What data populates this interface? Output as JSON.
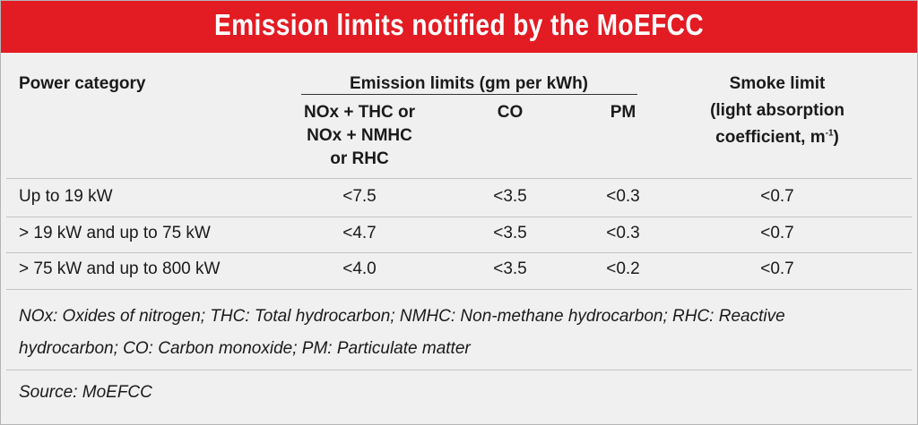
{
  "title": "Emission limits notified by the MoEFCC",
  "table": {
    "header": {
      "power_category": "Power category",
      "emission_group": "Emission limits (gm per kWh)",
      "nox_lines": [
        "NOx + THC or",
        "NOx + NMHC",
        "or RHC"
      ],
      "co": "CO",
      "pm": "PM",
      "smoke_lines": [
        "Smoke limit",
        "(light absorption",
        "coefficient, m"
      ],
      "smoke_superscript": "-1",
      "smoke_suffix": ")"
    },
    "rows": [
      [
        "Up to 19 kW",
        "<7.5",
        "<3.5",
        "<0.3",
        "<0.7"
      ],
      [
        "> 19 kW and up to 75 kW",
        "<4.7",
        "<3.5",
        "<0.3",
        "<0.7"
      ],
      [
        "> 75 kW and up to 800 kW",
        "<4.0",
        "<3.5",
        "<0.2",
        "<0.7"
      ]
    ]
  },
  "note_lines": [
    "NOx: Oxides of nitrogen; THC: Total hydrocarbon; NMHC: Non-methane hydrocarbon; RHC: Reactive",
    "hydrocarbon; CO: Carbon monoxide; PM: Particulate matter"
  ],
  "source": "Source: MoEFCC"
}
